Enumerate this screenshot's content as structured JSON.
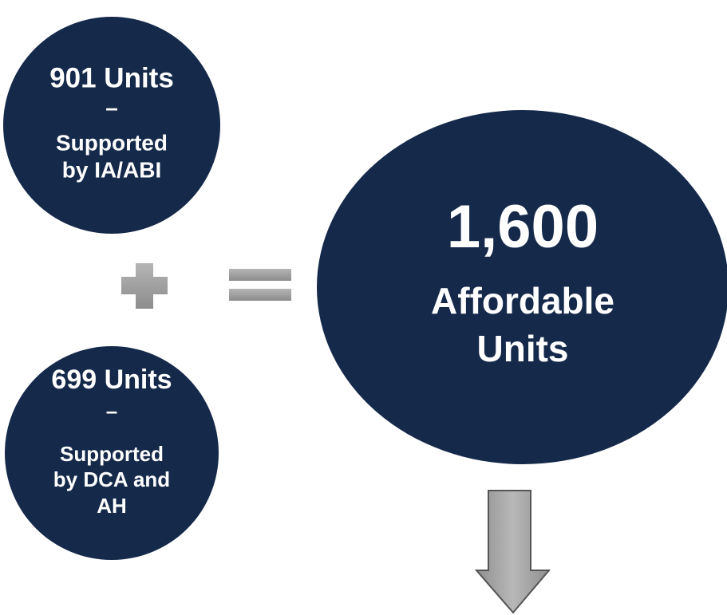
{
  "left_circles": [
    {
      "lines": [
        "901 Units",
        "–",
        "Supported",
        "by IA/ABI"
      ]
    },
    {
      "lines": [
        "699 Units",
        "–",
        "Supported",
        "by DCA and",
        "AH"
      ]
    }
  ],
  "total_circle": {
    "lines": [
      "1,600",
      "Affordable",
      "Units"
    ]
  }
}
